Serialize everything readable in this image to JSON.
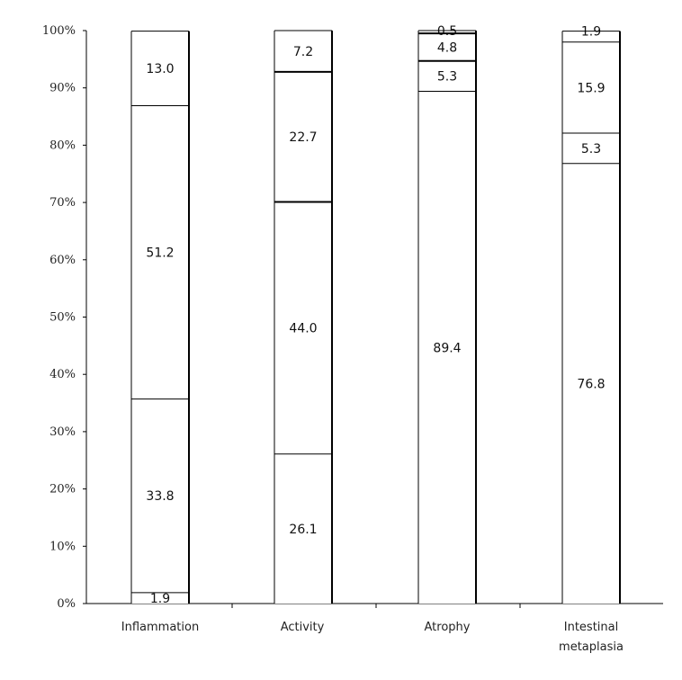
{
  "chart_data": {
    "type": "bar",
    "stacked": true,
    "y_tick_labels": [
      "0%",
      "10%",
      "20%",
      "30%",
      "40%",
      "50%",
      "60%",
      "70%",
      "80%",
      "90%",
      "100%"
    ],
    "ylim": [
      0,
      100
    ],
    "grid": false,
    "categories": [
      {
        "label_lines": [
          "Inflammation"
        ],
        "segments": [
          1.9,
          33.8,
          51.2,
          13.0
        ]
      },
      {
        "label_lines": [
          "Activity"
        ],
        "segments": [
          26.1,
          44.0,
          22.7,
          7.2
        ]
      },
      {
        "label_lines": [
          "Atrophy"
        ],
        "segments": [
          89.4,
          5.3,
          4.8,
          0.5
        ]
      },
      {
        "label_lines": [
          "Intestinal",
          "metaplasia"
        ],
        "segments": [
          76.8,
          5.3,
          15.9,
          1.9
        ]
      }
    ],
    "segment_labels": [
      [
        "1.9",
        "33.8",
        "51.2",
        "13.0"
      ],
      [
        "26.1",
        "44.0",
        "22.7",
        "7.2"
      ],
      [
        "89.4",
        "5.3",
        "4.8",
        "0.5"
      ],
      [
        "76.8",
        "5.3",
        "15.9",
        "1.9"
      ]
    ]
  }
}
